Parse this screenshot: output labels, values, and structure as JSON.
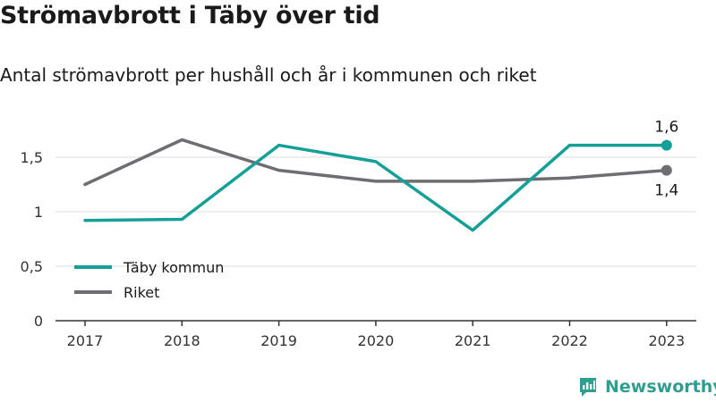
{
  "chart_data": {
    "type": "line",
    "title": "Strömavbrott i Täby över tid",
    "subtitle": "Antal strömavbrott per hushåll och år i kommunen och riket",
    "x": [
      "2017",
      "2018",
      "2019",
      "2020",
      "2021",
      "2022",
      "2023"
    ],
    "yticks": [
      0,
      0.5,
      1,
      1.5
    ],
    "ytick_labels": [
      "0",
      "0,5",
      "1",
      "1,5"
    ],
    "ylim": [
      0,
      1.75
    ],
    "grid": true,
    "legend_position": "bottom-left",
    "series": [
      {
        "name": "Täby kommun",
        "color": "#14a096",
        "values": [
          0.92,
          0.93,
          1.61,
          1.46,
          0.83,
          1.61,
          1.61
        ],
        "end_label": "1,6"
      },
      {
        "name": "Riket",
        "color": "#6e6d72",
        "values": [
          1.25,
          1.66,
          1.38,
          1.28,
          1.28,
          1.31,
          1.38
        ],
        "end_label": "1,4"
      }
    ]
  },
  "brand": {
    "name": "Newsworthy",
    "icon": "newsworthy-logo-icon",
    "color": "#2e9e8f"
  }
}
